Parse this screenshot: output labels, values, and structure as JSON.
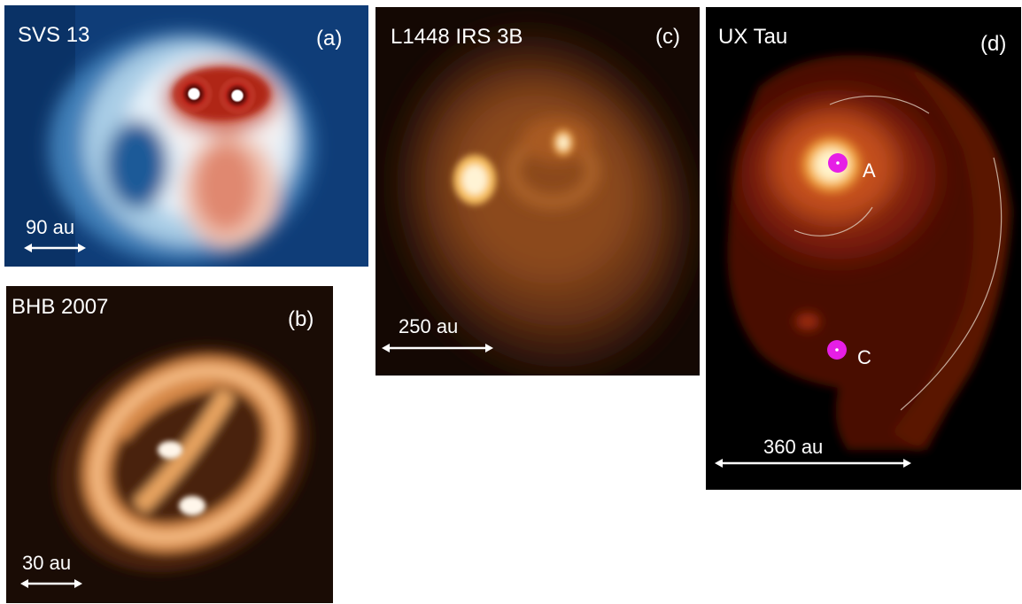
{
  "panels": {
    "a": {
      "title": "SVS 13",
      "tag": "(a)",
      "scale": "90 au",
      "colors": {
        "background": "#0f3d78",
        "emission": "#eaf3fa",
        "peak": "#8b1a0e"
      }
    },
    "b": {
      "title": "BHB 2007",
      "tag": "(b)",
      "scale": "30 au",
      "colors": {
        "background": "#1a0c05",
        "emission": "#e8a060",
        "peak": "#fff6ea"
      }
    },
    "c": {
      "title": "L1448 IRS 3B",
      "tag": "(c)",
      "scale": "250 au",
      "colors": {
        "background": "#140803",
        "emission": "#a85a22",
        "peak": "#fff3d4"
      }
    },
    "d": {
      "title": "UX Tau",
      "tag": "(d)",
      "scale": "360 au",
      "star_a": "A",
      "star_c": "C",
      "colors": {
        "background": "#000000",
        "emission": "#5a1306",
        "peak": "#fff4cc",
        "star_marker": "#e61ee6"
      }
    }
  }
}
